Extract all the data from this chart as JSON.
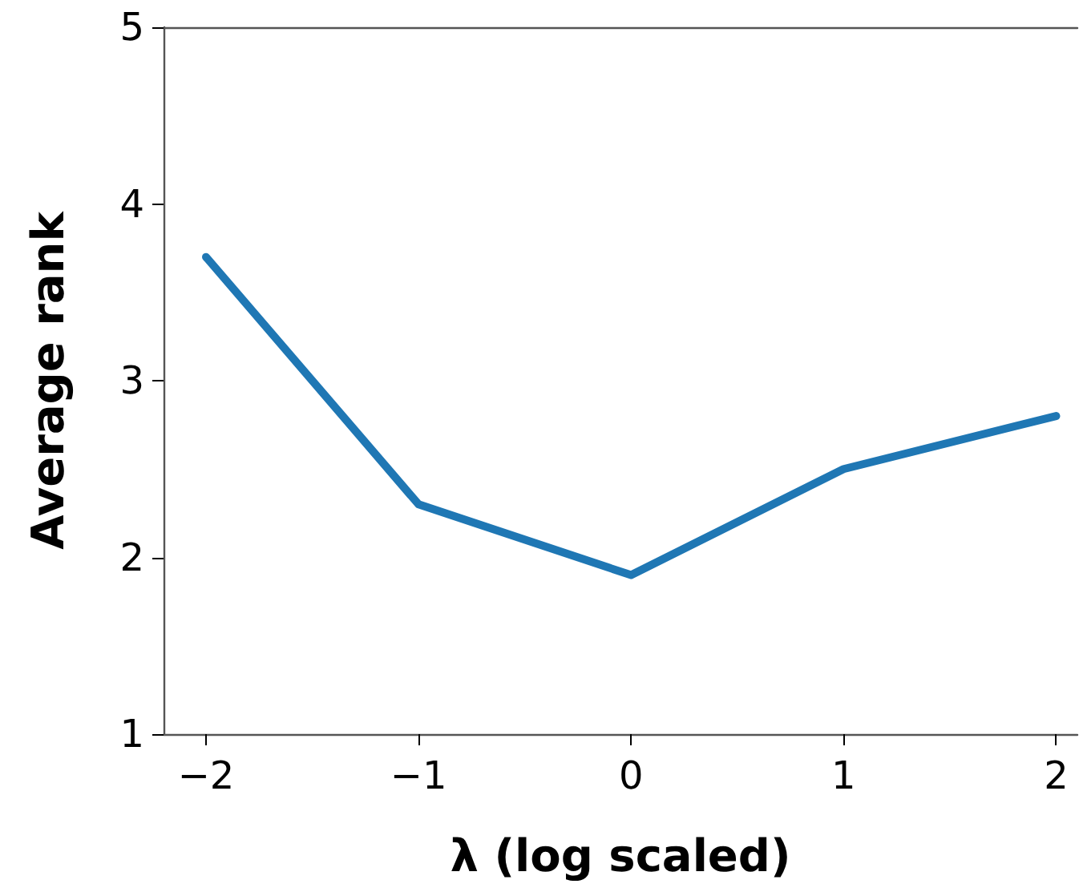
{
  "chart_data": {
    "type": "line",
    "xlabel": "λ (log scaled)",
    "ylabel": "Average rank",
    "x": [
      -2,
      -1,
      0,
      1,
      2
    ],
    "series": [
      {
        "color": "#1f77b4",
        "values": [
          3.7,
          2.3,
          1.9,
          2.5,
          2.8
        ]
      }
    ],
    "xlim": [
      -2.2,
      2.1
    ],
    "xticks": [
      -2,
      -1,
      0,
      1,
      2
    ],
    "ylim": [
      1,
      5
    ],
    "yticks": [
      1,
      2,
      3,
      4,
      5
    ],
    "grid": false,
    "marker": "none",
    "line_style": "solid"
  }
}
